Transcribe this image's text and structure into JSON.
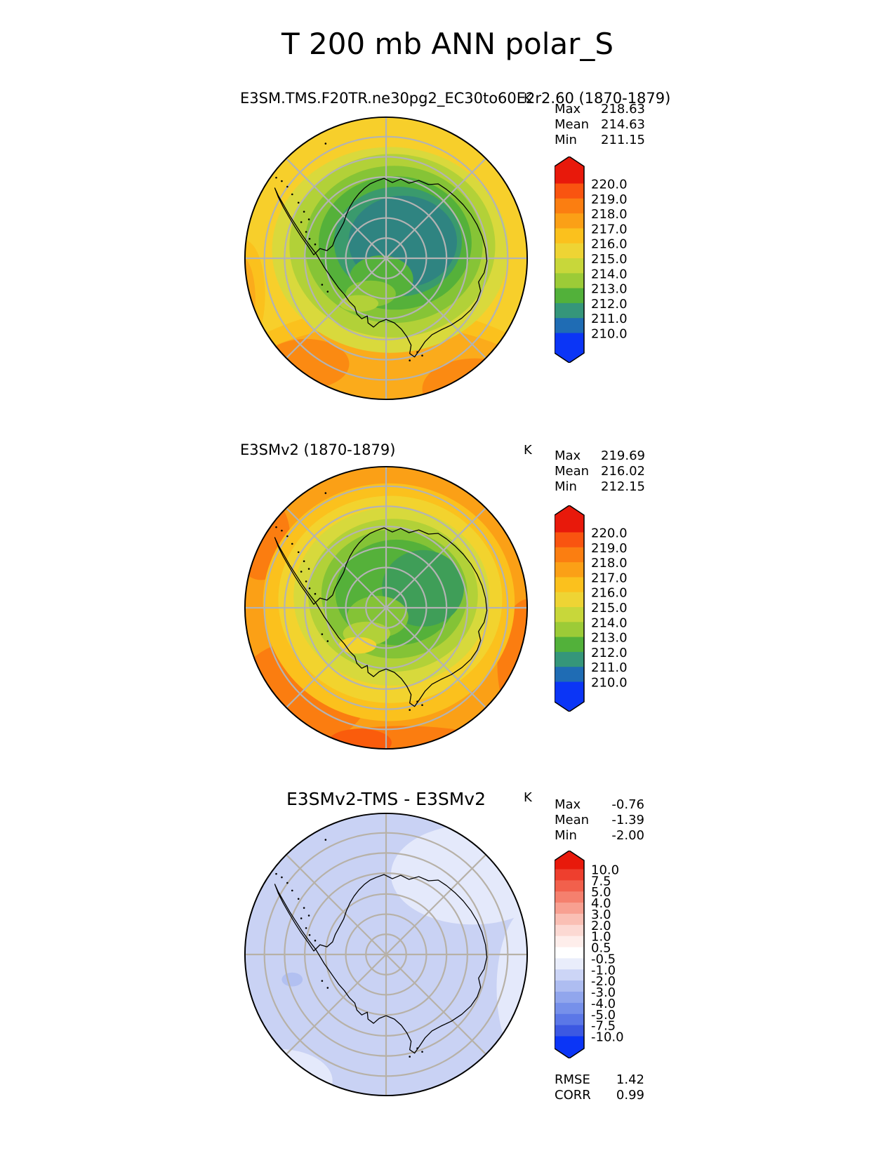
{
  "figure": {
    "title": "T 200 mb ANN polar_S"
  },
  "panels": [
    {
      "title": "E3SM.TMS.F20TR.ne30pg2_EC30to60E2r2.60 (1870-1879)",
      "units": "K",
      "stats": {
        "rows": [
          {
            "label": "Max",
            "value": "218.63"
          },
          {
            "label": "Mean",
            "value": "214.63"
          },
          {
            "label": "Min",
            "value": "211.15"
          }
        ]
      },
      "colorbar": {
        "tick_labels": [
          "220.0",
          "219.0",
          "218.0",
          "217.0",
          "216.0",
          "215.0",
          "214.0",
          "213.0",
          "212.0",
          "211.0",
          "210.0"
        ],
        "colors": [
          "#e8190b",
          "#f95410",
          "#fb7e11",
          "#fba016",
          "#fbc11d",
          "#eed434",
          "#c8d73a",
          "#9ccb37",
          "#52b13a",
          "#35967a",
          "#1f6cb4",
          "#0b35f6"
        ]
      },
      "map_palette": [
        "#f7cf2b",
        "#fbc11d",
        "#fbab1b",
        "#fb8a12",
        "#d9d93c",
        "#b2d138",
        "#86c436",
        "#55b13a",
        "#3a9a6d",
        "#2f8481"
      ]
    },
    {
      "title": "E3SMv2 (1870-1879)",
      "units": "K",
      "stats": {
        "rows": [
          {
            "label": "Max",
            "value": "219.69"
          },
          {
            "label": "Mean",
            "value": "216.02"
          },
          {
            "label": "Min",
            "value": "212.15"
          }
        ]
      },
      "colorbar": {
        "tick_labels": [
          "220.0",
          "219.0",
          "218.0",
          "217.0",
          "216.0",
          "215.0",
          "214.0",
          "213.0",
          "212.0",
          "211.0",
          "210.0"
        ],
        "colors": [
          "#e8190b",
          "#f95410",
          "#fb7e11",
          "#fba016",
          "#fbc11d",
          "#eed434",
          "#c8d73a",
          "#9ccb37",
          "#52b13a",
          "#35967a",
          "#1f6cb4",
          "#0b35f6"
        ]
      },
      "map_palette": [
        "#fba016",
        "#fb7d10",
        "#fa5c0c",
        "#fbc11d",
        "#f2d32e",
        "#d7d93c",
        "#b2d138",
        "#84c336",
        "#55b13a",
        "#3f9e58"
      ]
    },
    {
      "title": "E3SMv2-TMS - E3SMv2",
      "units": "K",
      "stats": {
        "rows": [
          {
            "label": "Max",
            "value": "-0.76"
          },
          {
            "label": "Mean",
            "value": "-1.39"
          },
          {
            "label": "Min",
            "value": "-2.00"
          }
        ]
      },
      "colorbar": {
        "tick_labels": [
          "10.0",
          "7.5",
          "5.0",
          "4.0",
          "3.0",
          "2.0",
          "1.0",
          "0.5",
          "-0.5",
          "-1.0",
          "-2.0",
          "-3.0",
          "-4.0",
          "-5.0",
          "-7.5",
          "-10.0"
        ],
        "colors": [
          "#e8190b",
          "#ee3f2e",
          "#f2604c",
          "#f5806e",
          "#f8a091",
          "#fabfb4",
          "#fcd9d3",
          "#feeeeb",
          "#ffffff",
          "#e9edfb",
          "#ccd5f6",
          "#aebdf1",
          "#91a6ed",
          "#7690ea",
          "#5b77e7",
          "#3c58e2",
          "#0b35f6"
        ]
      },
      "map_palette": [
        "#c9d2f4",
        "#e4e9fb",
        "#b2c0f1"
      ],
      "metrics": {
        "rows": [
          {
            "label": "RMSE",
            "value": "1.42"
          },
          {
            "label": "CORR",
            "value": "0.99"
          }
        ]
      }
    }
  ],
  "chart_data": [
    {
      "type": "heatmap",
      "projection": "south-polar stereographic map (Antarctica), graticule every 5 deg lat / 45 deg lon",
      "title": "E3SM.TMS.F20TR.ne30pg2_EC30to60E2r2.60 (1870-1879)",
      "figure_title": "T 200 mb ANN polar_S",
      "units": "K",
      "stats": {
        "max": 218.63,
        "mean": 214.63,
        "min": 211.15
      },
      "contour_levels": [
        210.0,
        211.0,
        212.0,
        213.0,
        214.0,
        215.0,
        216.0,
        217.0,
        218.0,
        219.0,
        220.0
      ],
      "colormap": "rainbow (blue cold pole-interior to orange at 50S edge)",
      "legend_position": "right vertical colorbar with triangular over/under arrows"
    },
    {
      "type": "heatmap",
      "projection": "south-polar stereographic map (Antarctica), graticule every 5 deg lat / 45 deg lon",
      "title": "E3SMv2 (1870-1879)",
      "figure_title": "T 200 mb ANN polar_S",
      "units": "K",
      "stats": {
        "max": 219.69,
        "mean": 216.02,
        "min": 212.15
      },
      "contour_levels": [
        210.0,
        211.0,
        212.0,
        213.0,
        214.0,
        215.0,
        216.0,
        217.0,
        218.0,
        219.0,
        220.0
      ],
      "colormap": "rainbow (green interior, orange/red-orange at map edge)",
      "legend_position": "right vertical colorbar with triangular over/under arrows"
    },
    {
      "type": "heatmap",
      "projection": "south-polar stereographic map (Antarctica), graticule every 5 deg lat / 45 deg lon",
      "title": "E3SMv2-TMS - E3SMv2",
      "figure_title": "T 200 mb ANN polar_S",
      "units": "K",
      "stats": {
        "max": -0.76,
        "mean": -1.39,
        "min": -2.0,
        "rmse": 1.42,
        "corr": 0.99
      },
      "contour_levels": [
        -10.0,
        -7.5,
        -5.0,
        -4.0,
        -3.0,
        -2.0,
        -1.0,
        -0.5,
        0.5,
        1.0,
        2.0,
        3.0,
        4.0,
        5.0,
        7.5,
        10.0
      ],
      "colormap": "diverging red-white-blue; field almost uniform in -2..-0.5 band (pale periwinkle)",
      "legend_position": "right vertical colorbar with triangular over/under arrows"
    }
  ]
}
